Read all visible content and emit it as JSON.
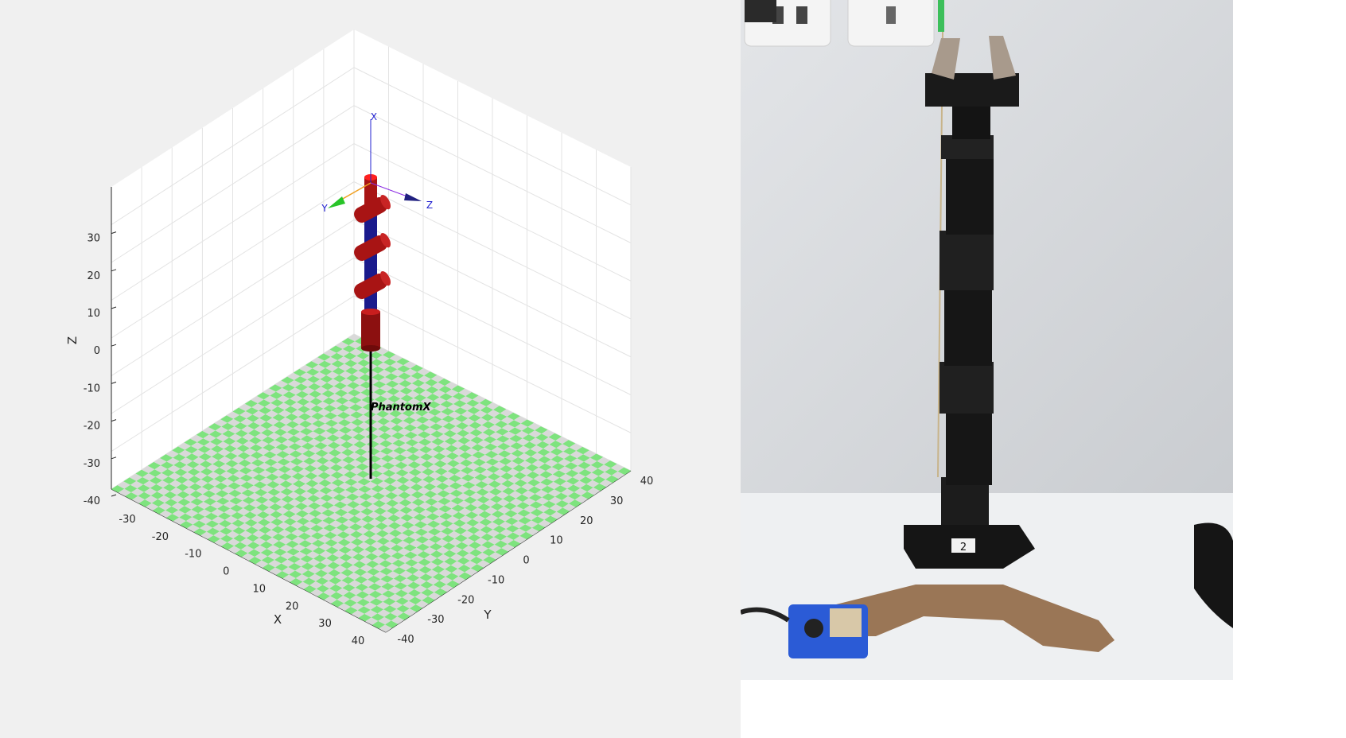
{
  "plot": {
    "axis_labels": {
      "x": "X",
      "y": "Y",
      "z": "Z"
    },
    "z_ticks": [
      "-40",
      "-30",
      "-20",
      "-10",
      "0",
      "10",
      "20",
      "30"
    ],
    "x_ticks": [
      "-30",
      "-20",
      "-10",
      "0",
      "10",
      "20",
      "30",
      "40"
    ],
    "y_ticks": [
      "-40",
      "-30",
      "-20",
      "-10",
      "0",
      "10",
      "20",
      "30",
      "40"
    ],
    "frame_axes": {
      "x": "X",
      "y": "Y",
      "z": "Z"
    },
    "robot_name": "PhantomX",
    "colors": {
      "floor_light": "#7ee37e",
      "floor_dark": "#d9d9d9",
      "link": "#1a1a8c",
      "joint": "#b01818",
      "grid": "#e3e3e3",
      "frame_x": "#2020d0",
      "frame_y": "#28c428",
      "frame_z": "#202080"
    }
  },
  "photo": {
    "description_icon": "robot-arm-photo",
    "base_label": "2"
  }
}
